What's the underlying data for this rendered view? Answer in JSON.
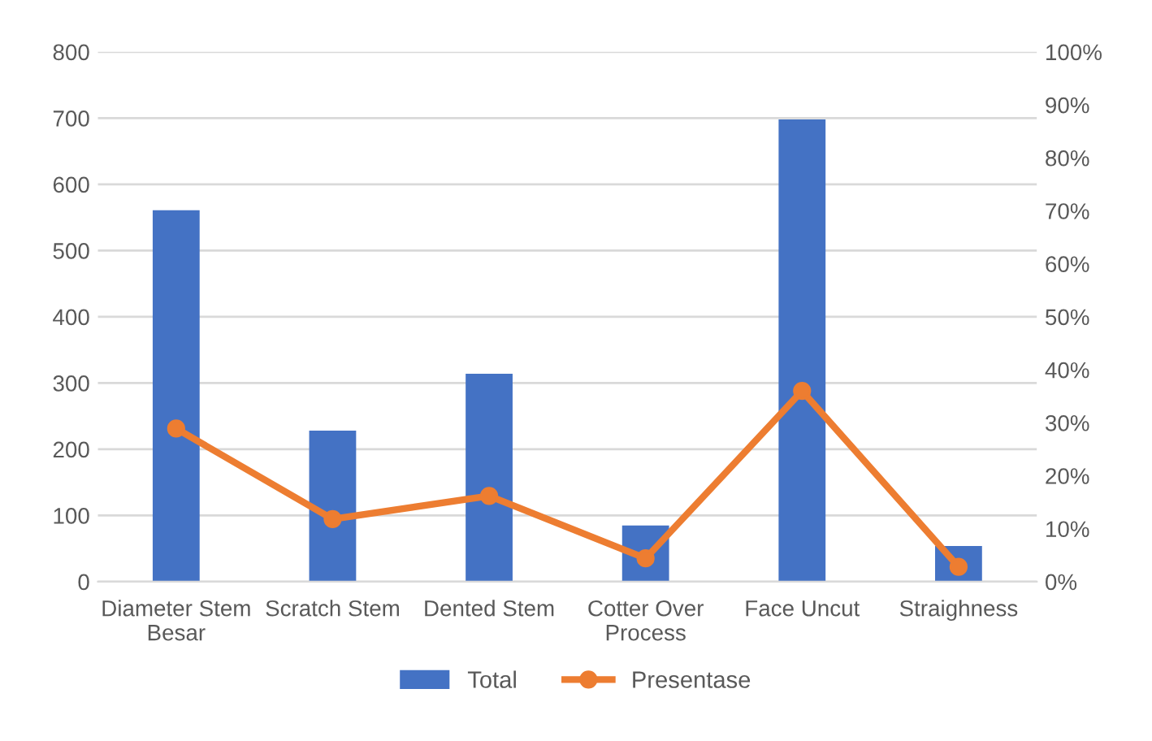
{
  "chart_data": {
    "type": "bar",
    "categories": [
      "Diameter Stem Besar",
      "Scratch Stem",
      "Dented Stem",
      "Cotter Over Process",
      "Face Uncut",
      "Straighness"
    ],
    "series": [
      {
        "name": "Total",
        "color": "#4472c4",
        "values": [
          561,
          228,
          314,
          85,
          698,
          54
        ]
      },
      {
        "name": "Presentase",
        "type": "line",
        "axis": "y2",
        "color": "#ed7d31",
        "marker": "circle",
        "values": [
          28.9,
          11.8,
          16.2,
          4.4,
          36.0,
          2.8
        ]
      }
    ],
    "ylim": [
      0,
      800
    ],
    "yticks": [
      0,
      100,
      200,
      300,
      400,
      500,
      600,
      700,
      800
    ],
    "y2lim": [
      0,
      100
    ],
    "y2ticks": [
      {
        "value": 0,
        "label": "0%"
      },
      {
        "value": 10,
        "label": "10%"
      },
      {
        "value": 20,
        "label": "20%"
      },
      {
        "value": 30,
        "label": "30%"
      },
      {
        "value": 40,
        "label": "40%"
      },
      {
        "value": 50,
        "label": "50%"
      },
      {
        "value": 60,
        "label": "60%"
      },
      {
        "value": 70,
        "label": "70%"
      },
      {
        "value": 80,
        "label": "80%"
      },
      {
        "value": 90,
        "label": "90%"
      },
      {
        "value": 100,
        "label": "100%"
      }
    ],
    "grid": "y",
    "legend": "bottom"
  }
}
